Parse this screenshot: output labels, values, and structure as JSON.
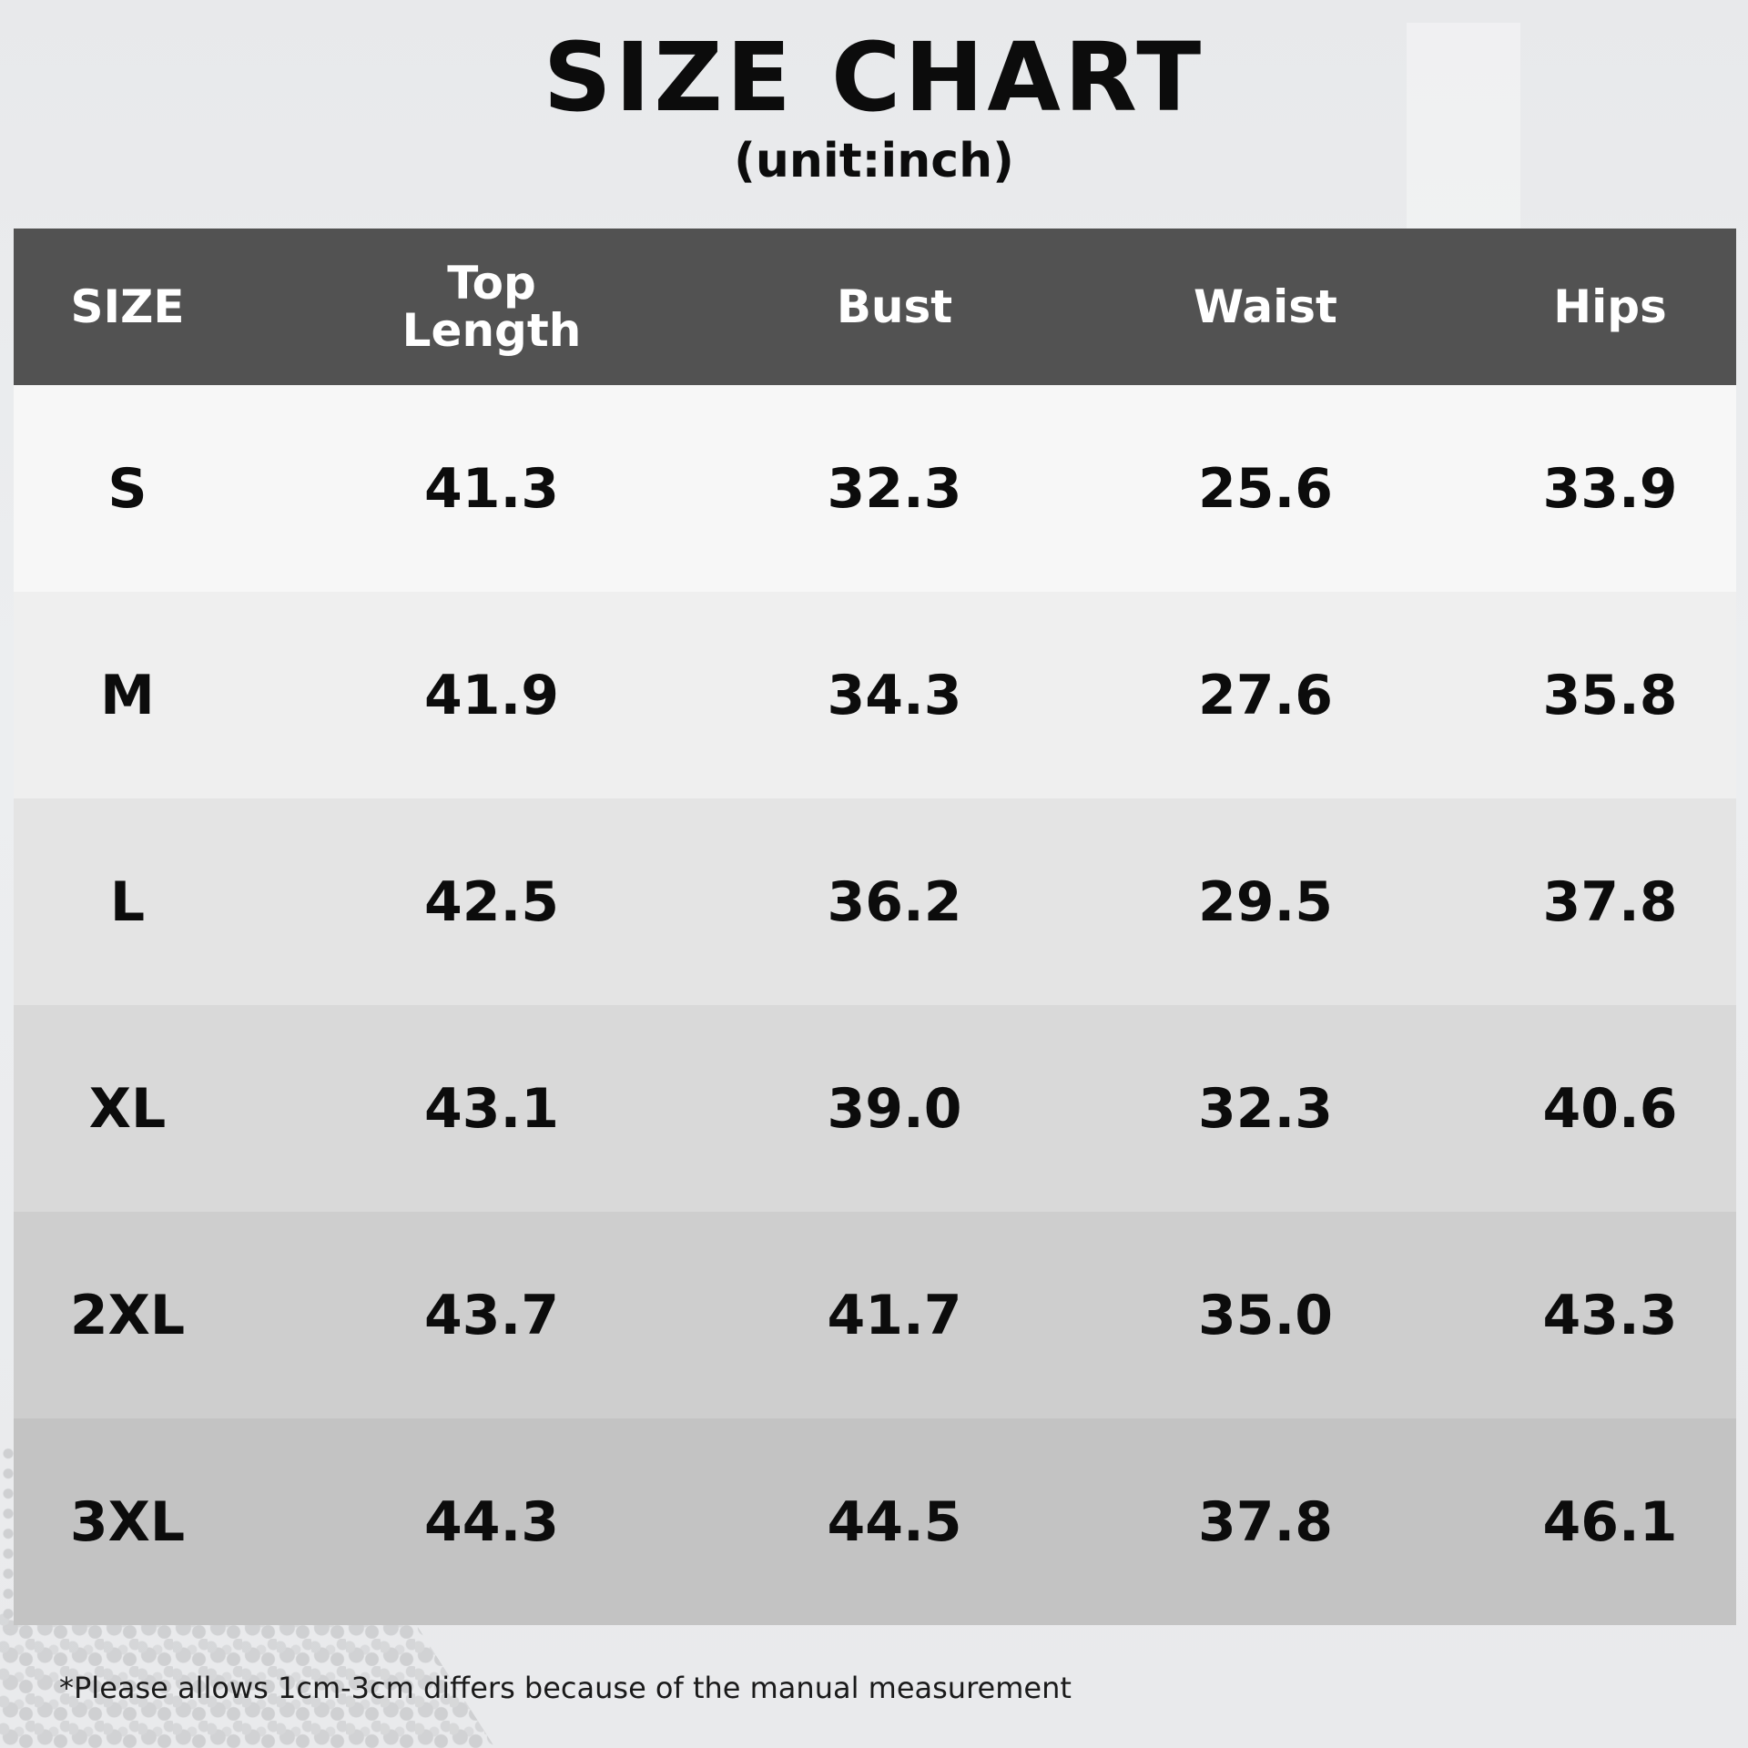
{
  "title": "SIZE CHART",
  "subtitle": "(unit:inch)",
  "table": {
    "headers": {
      "size": "SIZE",
      "top_line1": "Top",
      "top_line2": "Length",
      "bust": "Bust",
      "waist": "Waist",
      "hips": "Hips"
    },
    "header_color": "#525252",
    "rows": [
      {
        "size": "S",
        "top_length": "41.3",
        "bust": "32.3",
        "waist": "25.6",
        "hips": "33.9",
        "bg": "#f7f7f7"
      },
      {
        "size": "M",
        "top_length": "41.9",
        "bust": "34.3",
        "waist": "27.6",
        "hips": "35.8",
        "bg": "#efefef"
      },
      {
        "size": "L",
        "top_length": "42.5",
        "bust": "36.2",
        "waist": "29.5",
        "hips": "37.8",
        "bg": "#e4e4e4"
      },
      {
        "size": "XL",
        "top_length": "43.1",
        "bust": "39.0",
        "waist": "32.3",
        "hips": "40.6",
        "bg": "#d9d9d9"
      },
      {
        "size": "2XL",
        "top_length": "43.7",
        "bust": "41.7",
        "waist": "35.0",
        "hips": "43.3",
        "bg": "#cecece"
      },
      {
        "size": "3XL",
        "top_length": "44.3",
        "bust": "44.5",
        "waist": "37.8",
        "hips": "46.1",
        "bg": "#c3c3c3"
      }
    ]
  },
  "footnote": "*Please allows 1cm-3cm differs because of the manual measurement"
}
